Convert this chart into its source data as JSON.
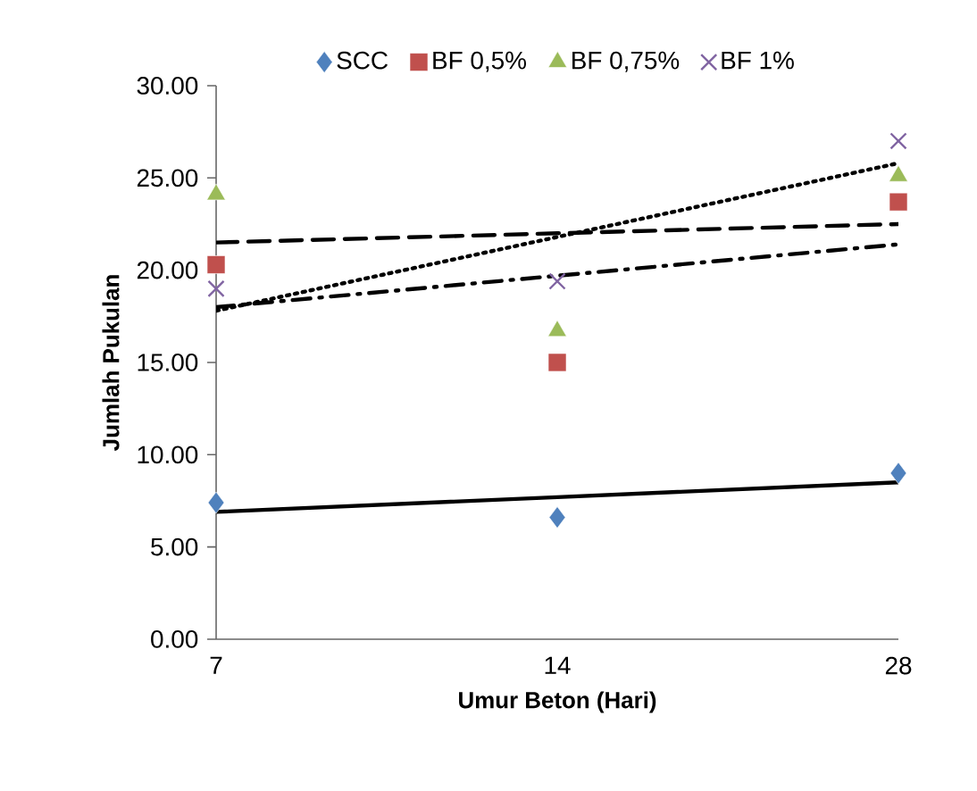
{
  "chart_data": {
    "type": "scatter",
    "xlabel": "Umur Beton (Hari)",
    "ylabel": "Jumlah Pukulan",
    "categories": [
      "7",
      "14",
      "28"
    ],
    "ylim": [
      0,
      30
    ],
    "yticks": [
      {
        "value": 0,
        "label": "0.00"
      },
      {
        "value": 5,
        "label": "5.00"
      },
      {
        "value": 10,
        "label": "10.00"
      },
      {
        "value": 15,
        "label": "15.00"
      },
      {
        "value": 20,
        "label": "20.00"
      },
      {
        "value": 25,
        "label": "25.00"
      },
      {
        "value": 30,
        "label": "30.00"
      }
    ],
    "grid": false,
    "legend": "top",
    "series": [
      {
        "name": "SCC",
        "marker": "diamond",
        "color": "#4f81bd",
        "values": [
          7.4,
          6.6,
          9.0
        ]
      },
      {
        "name": "BF 0,5%",
        "marker": "square",
        "color": "#c0504d",
        "values": [
          20.3,
          15.0,
          23.7
        ]
      },
      {
        "name": "BF 0,75%",
        "marker": "triangle",
        "color": "#9bbb59",
        "values": [
          24.1,
          16.7,
          25.1
        ]
      },
      {
        "name": "BF 1%",
        "marker": "cross",
        "color": "#8064a2",
        "values": [
          19.0,
          19.4,
          27.0
        ]
      },
      {
        "type": "line",
        "marker": "none",
        "line_style": "solid",
        "color": "#000000",
        "values": [
          6.9,
          7.7,
          8.5
        ]
      },
      {
        "type": "line",
        "marker": "none",
        "line_style": "dashdot",
        "color": "#000000",
        "values": [
          18.0,
          19.7,
          21.4
        ]
      },
      {
        "type": "line",
        "marker": "none",
        "line_style": "dashed",
        "color": "#000000",
        "values": [
          21.5,
          22.0,
          22.5
        ]
      },
      {
        "type": "line",
        "marker": "none",
        "line_style": "dotted",
        "color": "#000000",
        "values": [
          17.8,
          21.8,
          25.8
        ]
      }
    ]
  }
}
